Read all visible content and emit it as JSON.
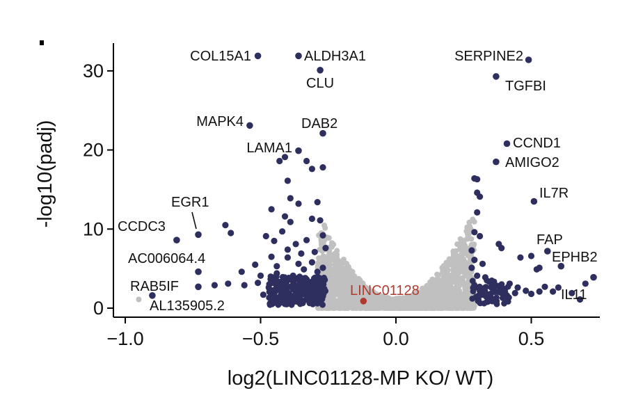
{
  "chart_data": {
    "type": "scatter",
    "title": "",
    "xlabel": "log2(LINC01128-MP KO/ WT)",
    "ylabel": "-log10(padj)",
    "xlim": [
      -1.0,
      0.75
    ],
    "ylim": [
      0,
      33
    ],
    "x_ticks": [
      -1.0,
      -0.5,
      0.0,
      0.5
    ],
    "x_tick_labels": [
      "−1.0",
      "−0.5",
      "0.0",
      "0.5"
    ],
    "y_ticks": [
      0,
      10,
      20,
      30
    ],
    "y_tick_labels": [
      "0",
      "10",
      "20",
      "30"
    ],
    "grid": false,
    "legend": "none",
    "colors": {
      "significant": "#2e2f5e",
      "not_significant": "#c0c0c0",
      "highlight": "#b03a2e"
    },
    "labeled_genes": [
      {
        "name": "COL15A1",
        "x": -0.51,
        "y": 31.9
      },
      {
        "name": "ALDH3A1",
        "x": -0.36,
        "y": 31.9
      },
      {
        "name": "CLU",
        "x": -0.28,
        "y": 30.1
      },
      {
        "name": "SERPINE2",
        "x": 0.49,
        "y": 31.4
      },
      {
        "name": "TGFBI",
        "x": 0.37,
        "y": 29.3
      },
      {
        "name": "MAPK4",
        "x": -0.54,
        "y": 23.1
      },
      {
        "name": "DAB2",
        "x": -0.27,
        "y": 22.1
      },
      {
        "name": "LAMA1",
        "x": -0.36,
        "y": 19.9
      },
      {
        "name": "CCND1",
        "x": 0.41,
        "y": 20.8
      },
      {
        "name": "AMIGO2",
        "x": 0.37,
        "y": 18.5
      },
      {
        "name": "IL7R",
        "x": 0.51,
        "y": 13.5
      },
      {
        "name": "EGR1",
        "x": -0.73,
        "y": 9.3
      },
      {
        "name": "CCDC3",
        "x": -0.81,
        "y": 8.6
      },
      {
        "name": "FAP",
        "x": 0.56,
        "y": 7.2
      },
      {
        "name": "EPHB2",
        "x": 0.61,
        "y": 5.3
      },
      {
        "name": "AC006064.4",
        "x": -0.73,
        "y": 4.6
      },
      {
        "name": "IL11",
        "x": 0.73,
        "y": 3.9
      },
      {
        "name": "RAB5IF",
        "x": -0.73,
        "y": 2.7
      },
      {
        "name": "AL135905.2",
        "x": -0.9,
        "y": 1.6
      },
      {
        "name": "LINC01128",
        "x": -0.12,
        "y": 0.9,
        "highlight": true
      }
    ],
    "significant_points": [
      [
        -0.63,
        10.5
      ],
      [
        -0.61,
        9.5
      ],
      [
        -0.67,
        2.9
      ],
      [
        -0.62,
        3.1
      ],
      [
        -0.56,
        2.9
      ],
      [
        -0.57,
        4.6
      ],
      [
        -0.46,
        12.5
      ],
      [
        -0.41,
        19.1
      ],
      [
        -0.43,
        18.6
      ],
      [
        -0.33,
        18.6
      ],
      [
        -0.31,
        17.6
      ],
      [
        -0.27,
        17.8
      ],
      [
        -0.4,
        16.1
      ],
      [
        -0.39,
        13.9
      ],
      [
        -0.36,
        13.2
      ],
      [
        -0.39,
        10.9
      ],
      [
        -0.41,
        11.6
      ],
      [
        -0.37,
        8.1
      ],
      [
        -0.33,
        8.6
      ],
      [
        -0.29,
        13.4
      ],
      [
        -0.28,
        11.1
      ],
      [
        -0.31,
        11.3
      ],
      [
        -0.27,
        9.2
      ],
      [
        -0.26,
        7.6
      ],
      [
        -0.48,
        9.1
      ],
      [
        -0.45,
        8.5
      ],
      [
        -0.42,
        9.7
      ],
      [
        -0.46,
        6.5
      ],
      [
        -0.52,
        5.5
      ],
      [
        -0.5,
        4.1
      ],
      [
        -0.44,
        5.3
      ],
      [
        -0.4,
        6.4
      ],
      [
        -0.35,
        6.9
      ],
      [
        -0.31,
        5.8
      ],
      [
        -0.29,
        4.6
      ],
      [
        -0.27,
        5.1
      ],
      [
        -0.38,
        4.1
      ],
      [
        -0.33,
        3.6
      ],
      [
        -0.41,
        3.1
      ],
      [
        -0.47,
        2.6
      ],
      [
        -0.51,
        3.2
      ],
      [
        -0.45,
        1.8
      ],
      [
        -0.4,
        1.6
      ],
      [
        -0.35,
        1.7
      ],
      [
        -0.3,
        1.9
      ],
      [
        -0.27,
        1.5
      ],
      [
        -0.37,
        2.4
      ],
      [
        -0.43,
        2.3
      ],
      [
        -0.49,
        1.7
      ],
      [
        -0.33,
        1.1
      ],
      [
        -0.28,
        2.9
      ],
      [
        -0.31,
        2.3
      ],
      [
        -0.38,
        0.9
      ],
      [
        -0.43,
        0.8
      ],
      [
        -0.27,
        3.4
      ],
      [
        -0.34,
        4.9
      ],
      [
        -0.4,
        7.4
      ],
      [
        -0.44,
        4.4
      ],
      [
        -0.36,
        5.6
      ],
      [
        -0.3,
        7.1
      ],
      [
        0.29,
        16.4
      ],
      [
        0.3,
        16.3
      ],
      [
        0.3,
        14.6
      ],
      [
        0.31,
        14.1
      ],
      [
        0.3,
        12.1
      ],
      [
        0.29,
        9.6
      ],
      [
        0.31,
        9.1
      ],
      [
        0.28,
        7.3
      ],
      [
        0.29,
        6.1
      ],
      [
        0.32,
        5.6
      ],
      [
        0.28,
        5.1
      ],
      [
        0.3,
        4.1
      ],
      [
        0.33,
        3.9
      ],
      [
        0.36,
        3.3
      ],
      [
        0.38,
        2.8
      ],
      [
        0.4,
        2.4
      ],
      [
        0.42,
        3.1
      ],
      [
        0.45,
        2.6
      ],
      [
        0.48,
        2.2
      ],
      [
        0.5,
        1.8
      ],
      [
        0.53,
        2.1
      ],
      [
        0.55,
        2.7
      ],
      [
        0.52,
        4.9
      ],
      [
        0.53,
        5.1
      ],
      [
        0.46,
        6.4
      ],
      [
        0.5,
        6.6
      ],
      [
        0.39,
        7.6
      ],
      [
        0.38,
        8.1
      ],
      [
        0.41,
        1.6
      ],
      [
        0.35,
        1.8
      ],
      [
        0.31,
        2.2
      ],
      [
        0.29,
        2.9
      ],
      [
        0.33,
        2.6
      ],
      [
        0.44,
        1.9
      ],
      [
        0.58,
        2.1
      ],
      [
        0.6,
        2.6
      ],
      [
        0.65,
        1.9
      ],
      [
        0.68,
        1.1
      ],
      [
        0.7,
        3.1
      ],
      [
        0.36,
        1.1
      ]
    ]
  }
}
